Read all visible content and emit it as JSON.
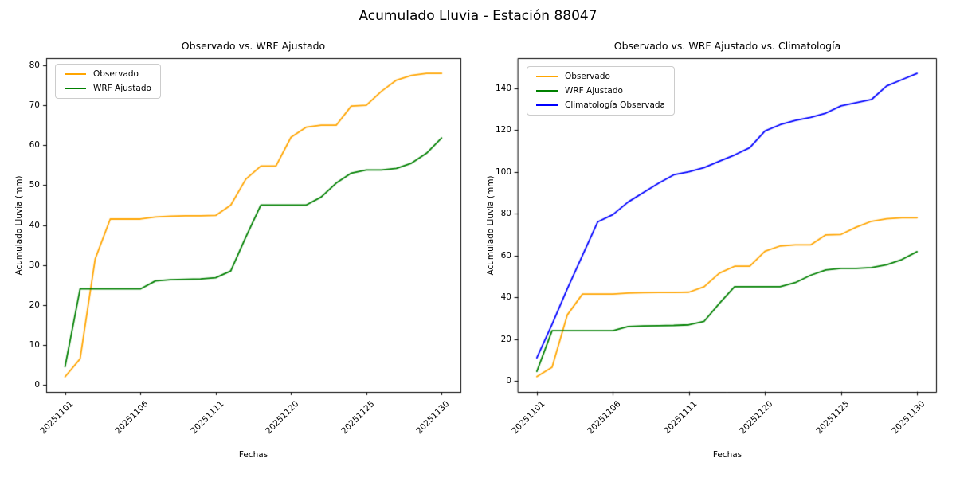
{
  "figure": {
    "suptitle": "Acumulado Lluvia - Estación 88047",
    "background": "#ffffff",
    "text_color": "#000000"
  },
  "chart_data": [
    {
      "type": "line",
      "title": "Observado vs. WRF Ajustado",
      "xlabel": "Fechas",
      "ylabel": "Acumulado Lluvia (mm)",
      "legend_position": "upper-left",
      "grid": false,
      "x_tick_labels": [
        "20251101",
        "20251106",
        "20251111",
        "20251120",
        "20251125",
        "20251130"
      ],
      "x_tick_positions": [
        0,
        5,
        10,
        15,
        20,
        25
      ],
      "y_ticks": [
        0,
        10,
        20,
        30,
        40,
        50,
        60,
        70,
        80
      ],
      "xlim": [
        -1.25,
        26.25
      ],
      "ylim": [
        -1.8,
        81.8
      ],
      "series": [
        {
          "name": "Observado",
          "color": "#FFA500",
          "values": [
            2,
            6.5,
            31.5,
            41.5,
            41.5,
            41.5,
            42,
            42.2,
            42.3,
            42.3,
            42.4,
            45,
            51.5,
            54.8,
            54.8,
            62,
            64.5,
            65,
            65,
            69.8,
            70,
            73.5,
            76.3,
            77.5,
            78,
            78
          ]
        },
        {
          "name": "WRF Ajustado",
          "color": "#008000",
          "values": [
            4.5,
            24,
            24,
            24,
            24,
            24,
            26,
            26.3,
            26.4,
            26.5,
            26.8,
            28.5,
            37,
            45,
            45,
            45,
            45,
            47,
            50.5,
            53,
            53.8,
            53.8,
            54.2,
            55.5,
            58,
            61.8
          ]
        }
      ]
    },
    {
      "type": "line",
      "title": "Observado vs. WRF Ajustado vs. Climatología",
      "xlabel": "Fechas",
      "ylabel": "Acumulado Lluvia (mm)",
      "legend_position": "upper-left",
      "grid": false,
      "x_tick_labels": [
        "20251101",
        "20251106",
        "20251111",
        "20251120",
        "20251125",
        "20251130"
      ],
      "x_tick_positions": [
        0,
        5,
        10,
        15,
        20,
        25
      ],
      "y_ticks": [
        0,
        20,
        40,
        60,
        80,
        100,
        120,
        140
      ],
      "xlim": [
        -1.25,
        26.25
      ],
      "ylim": [
        -5.3,
        154.3
      ],
      "series": [
        {
          "name": "Observado",
          "color": "#FFA500",
          "values": [
            2,
            6.5,
            31.5,
            41.5,
            41.5,
            41.5,
            42,
            42.2,
            42.3,
            42.3,
            42.4,
            45,
            51.5,
            54.8,
            54.8,
            62,
            64.5,
            65,
            65,
            69.8,
            70,
            73.5,
            76.3,
            77.5,
            78,
            78
          ]
        },
        {
          "name": "WRF Ajustado",
          "color": "#008000",
          "values": [
            4.5,
            24,
            24,
            24,
            24,
            24,
            26,
            26.3,
            26.4,
            26.5,
            26.8,
            28.5,
            37,
            45,
            45,
            45,
            45,
            47,
            50.5,
            53,
            53.8,
            53.8,
            54.2,
            55.5,
            58,
            61.8
          ]
        },
        {
          "name": "Climatología Observada",
          "color": "#0000FF",
          "values": [
            11,
            27,
            44,
            60,
            76,
            79.5,
            85.5,
            90,
            94.5,
            98.5,
            100,
            102,
            105,
            108,
            111.5,
            119.5,
            122.5,
            124.5,
            126,
            128,
            131.5,
            133,
            134.5,
            141,
            144,
            147
          ]
        }
      ]
    }
  ]
}
